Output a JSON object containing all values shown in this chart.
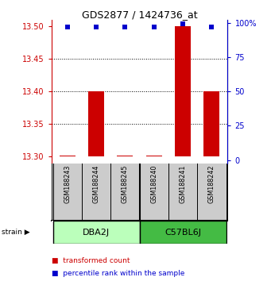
{
  "title": "GDS2877 / 1424736_at",
  "samples": [
    "GSM188243",
    "GSM188244",
    "GSM188245",
    "GSM188240",
    "GSM188241",
    "GSM188242"
  ],
  "groups": [
    {
      "name": "DBA2J",
      "indices": [
        0,
        1,
        2
      ],
      "color": "#aaffaa"
    },
    {
      "name": "C57BL6J",
      "indices": [
        3,
        4,
        5
      ],
      "color": "#33cc33"
    }
  ],
  "red_values": [
    13.302,
    13.4,
    13.302,
    13.302,
    13.5,
    13.4
  ],
  "blue_pct": [
    97,
    97,
    97,
    97,
    99,
    97
  ],
  "bar_baseline": 13.3,
  "ylim_left": [
    13.29,
    13.51
  ],
  "ylim_right": [
    -2.2,
    102.2
  ],
  "yticks_left": [
    13.3,
    13.35,
    13.4,
    13.45,
    13.5
  ],
  "yticks_right": [
    0,
    25,
    50,
    75,
    100
  ],
  "grid_lines": [
    13.35,
    13.4,
    13.45
  ],
  "bar_color": "#cc0000",
  "dot_color": "#0000cc",
  "bar_width": 0.55,
  "legend_red_label": "transformed count",
  "legend_blue_label": "percentile rank within the sample",
  "background_color": "#ffffff",
  "axis_color_left": "#cc0000",
  "axis_color_right": "#0000cc",
  "sample_box_color": "#cccccc",
  "group1_color": "#bbffbb",
  "group2_color": "#44bb44"
}
